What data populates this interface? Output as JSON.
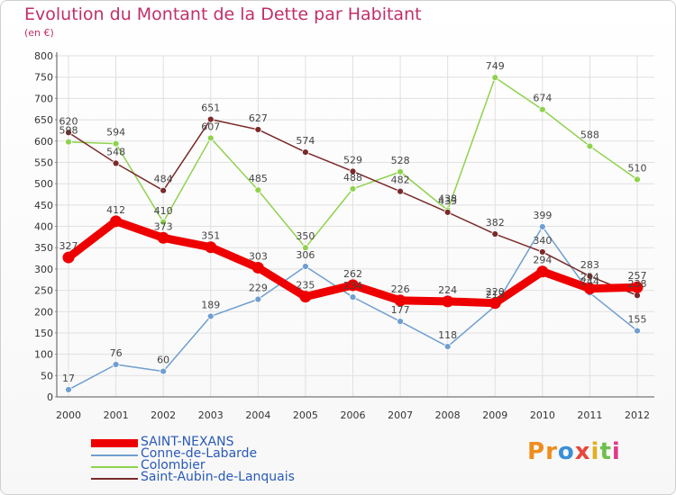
{
  "title": "Evolution du Montant de la Dette par Habitant",
  "subtitle": "(en €)",
  "brand": {
    "text": "Proxiti",
    "letters": [
      "P",
      "r",
      "o",
      "x",
      "i",
      "t",
      "i"
    ],
    "colors": [
      "#f08c1e",
      "#f08c1e",
      "#3a8fd8",
      "#e8463c",
      "#e0b020",
      "#6cc04a",
      "#e03a8c"
    ]
  },
  "chart_data": {
    "type": "line",
    "title": "Evolution du Montant de la Dette par Habitant",
    "ylabel": "(en €)",
    "xlabel": "",
    "x": [
      "2000",
      "2001",
      "2002",
      "2003",
      "2004",
      "2005",
      "2006",
      "2007",
      "2008",
      "2009",
      "2010",
      "2011",
      "2012"
    ],
    "ylim": [
      0,
      800
    ],
    "yticks": [
      0,
      50,
      100,
      150,
      200,
      250,
      300,
      350,
      400,
      450,
      500,
      550,
      600,
      650,
      700,
      750,
      800
    ],
    "grid": true,
    "legend_position": "bottom",
    "series": [
      {
        "name": "SAINT-NEXANS",
        "color": "#ee0000",
        "width": 9,
        "values": [
          327,
          412,
          373,
          351,
          303,
          235,
          262,
          226,
          224,
          220,
          294,
          254,
          257
        ]
      },
      {
        "name": "Conne-de-Labarde",
        "color": "#6f9fd0",
        "width": 1.5,
        "values": [
          17,
          76,
          60,
          189,
          229,
          306,
          234,
          177,
          118,
          213,
          399,
          244,
          155
        ]
      },
      {
        "name": "Colombier",
        "color": "#8fd24e",
        "width": 1.5,
        "values": [
          598,
          594,
          410,
          607,
          485,
          350,
          488,
          528,
          438,
          749,
          674,
          588,
          510
        ]
      },
      {
        "name": "Saint-Aubin-de-Lanquais",
        "color": "#7a2a2a",
        "width": 1.5,
        "values": [
          620,
          548,
          484,
          651,
          627,
          574,
          529,
          482,
          433,
          382,
          340,
          283,
          238
        ]
      }
    ]
  }
}
